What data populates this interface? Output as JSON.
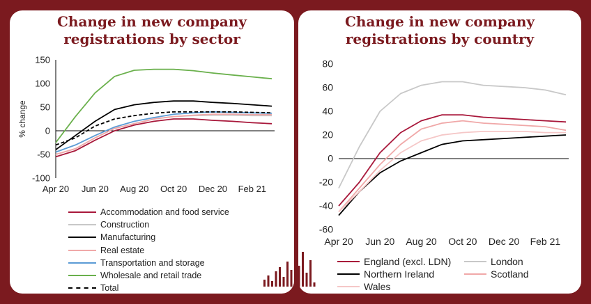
{
  "panels": {
    "left": {
      "title_line1": "Change in new company",
      "title_line2": "registrations by sector"
    },
    "right": {
      "title_line1": "Change in new company",
      "title_line2": "registrations by country"
    }
  },
  "chart_data": [
    {
      "type": "line",
      "title": "Change in new company registrations by sector",
      "ylabel": "% change",
      "xlabel": "",
      "x_ticks": [
        "Apr 20",
        "Jun 20",
        "Aug 20",
        "Oct 20",
        "Dec 20",
        "Feb 21"
      ],
      "x": [
        "Apr 20",
        "May 20",
        "Jun 20",
        "Jul 20",
        "Aug 20",
        "Sep 20",
        "Oct 20",
        "Nov 20",
        "Dec 20",
        "Jan 21",
        "Feb 21",
        "Mar 21"
      ],
      "ylim": [
        -100,
        150
      ],
      "yticks": [
        -100,
        -50,
        0,
        50,
        100,
        150
      ],
      "grid": false,
      "legend": "bottom",
      "series": [
        {
          "name": "Accommodation and food service",
          "color": "#a8173a",
          "dashed": false,
          "values": [
            -55,
            -42,
            -20,
            0,
            12,
            20,
            25,
            25,
            22,
            20,
            17,
            15
          ]
        },
        {
          "name": "Construction",
          "color": "#c8c8c8",
          "dashed": false,
          "values": [
            -50,
            -38,
            -15,
            5,
            15,
            25,
            30,
            32,
            33,
            33,
            32,
            32
          ]
        },
        {
          "name": "Manufacturing",
          "color": "#000000",
          "dashed": false,
          "values": [
            -40,
            -10,
            20,
            45,
            55,
            60,
            63,
            63,
            60,
            58,
            55,
            52
          ]
        },
        {
          "name": "Real estate",
          "color": "#f0a8a8",
          "dashed": false,
          "values": [
            -50,
            -38,
            -15,
            5,
            15,
            25,
            30,
            33,
            35,
            35,
            34,
            34
          ]
        },
        {
          "name": "Transportation and storage",
          "color": "#5b9bd5",
          "dashed": false,
          "values": [
            -45,
            -30,
            -10,
            8,
            20,
            28,
            35,
            38,
            40,
            39,
            38,
            37
          ]
        },
        {
          "name": "Wholesale and retail trade",
          "color": "#6ab04c",
          "dashed": false,
          "values": [
            -25,
            30,
            80,
            115,
            128,
            130,
            130,
            127,
            122,
            118,
            114,
            110
          ]
        },
        {
          "name": "Total",
          "color": "#000000",
          "dashed": true,
          "values": [
            -30,
            -15,
            10,
            25,
            32,
            37,
            40,
            40,
            40,
            40,
            39,
            38
          ]
        }
      ]
    },
    {
      "type": "line",
      "title": "Change in new company registrations by country",
      "ylabel": "",
      "xlabel": "",
      "x_ticks": [
        "Apr 20",
        "Jun 20",
        "Aug 20",
        "Oct 20",
        "Dec 20",
        "Feb 21"
      ],
      "x": [
        "Apr 20",
        "May 20",
        "Jun 20",
        "Jul 20",
        "Aug 20",
        "Sep 20",
        "Oct 20",
        "Nov 20",
        "Dec 20",
        "Jan 21",
        "Feb 21",
        "Mar 21"
      ],
      "ylim": [
        -60,
        80
      ],
      "yticks": [
        -60,
        -40,
        -20,
        0,
        20,
        40,
        60,
        80
      ],
      "grid": false,
      "legend": "bottom",
      "series": [
        {
          "name": "England (excl. LDN)",
          "color": "#a8173a",
          "dashed": false,
          "values": [
            -40,
            -20,
            5,
            22,
            32,
            37,
            37,
            35,
            34,
            33,
            32,
            31
          ]
        },
        {
          "name": "London",
          "color": "#c8c8c8",
          "dashed": false,
          "values": [
            -25,
            10,
            40,
            55,
            62,
            65,
            65,
            62,
            61,
            60,
            58,
            54
          ]
        },
        {
          "name": "Northern Ireland",
          "color": "#000000",
          "dashed": false,
          "values": [
            -48,
            -28,
            -12,
            -2,
            5,
            12,
            15,
            16,
            17,
            18,
            19,
            20
          ]
        },
        {
          "name": "Scotland",
          "color": "#f0a8a8",
          "dashed": false,
          "values": [
            -45,
            -25,
            -5,
            12,
            25,
            30,
            32,
            30,
            29,
            28,
            27,
            24
          ]
        },
        {
          "name": "Wales",
          "color": "#f5c7c7",
          "dashed": false,
          "values": [
            -45,
            -28,
            -10,
            5,
            15,
            20,
            22,
            23,
            23,
            23,
            22,
            22
          ]
        }
      ]
    }
  ]
}
